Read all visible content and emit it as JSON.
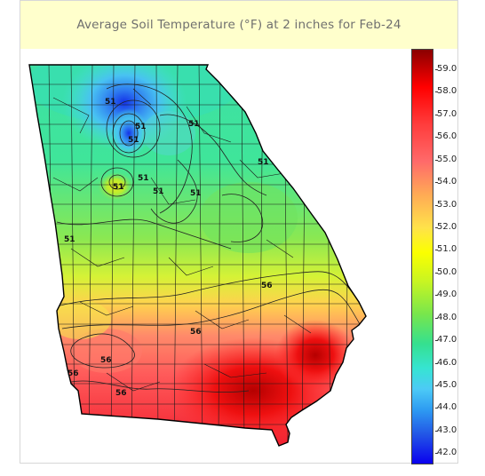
{
  "title": "Average Soil Temperature (°F) at 2 inches for Feb-24",
  "colorbar": {
    "min": 41.5,
    "max": 59.9,
    "ticks": [
      "59.0",
      "58.0",
      "57.0",
      "56.0",
      "55.0",
      "54.0",
      "53.0",
      "52.0",
      "51.0",
      "50.0",
      "49.0",
      "48.0",
      "47.0",
      "46.0",
      "45.0",
      "44.0",
      "43.0",
      "42.0"
    ]
  },
  "contour_labels": [
    "51",
    "51",
    "51",
    "51",
    "51",
    "51",
    "51",
    "51",
    "51",
    "51",
    "56",
    "56",
    "56",
    "56",
    "56"
  ],
  "colors": {
    "title_background": "#ffffcc",
    "title_text": "#6f6f6f",
    "cold": "#0a00ee",
    "warm": "#8a0000"
  }
}
